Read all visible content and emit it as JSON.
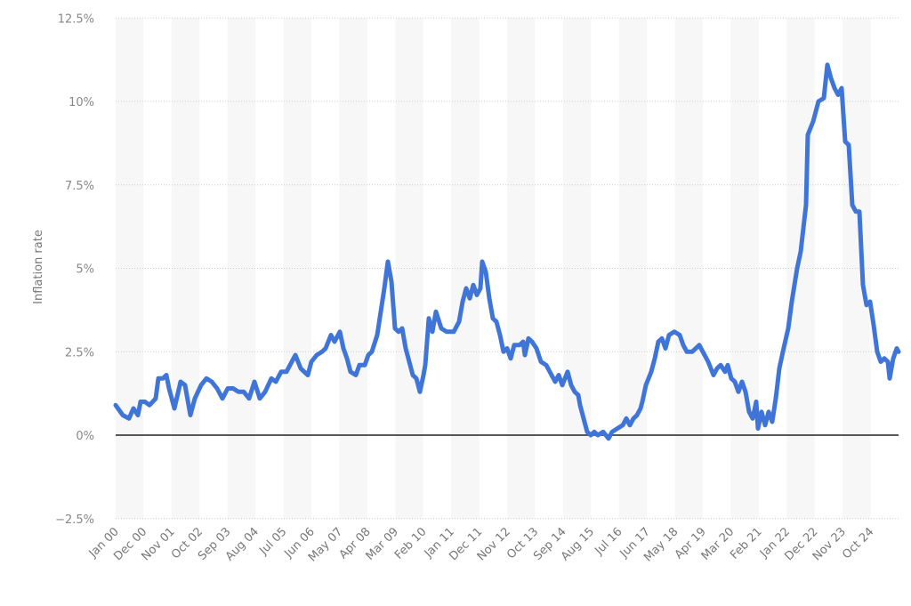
{
  "chart_data": {
    "type": "line",
    "title": "",
    "xlabel": "",
    "ylabel": "Inflation rate",
    "ylim": [
      -2.5,
      12.5
    ],
    "yticks": [
      "12.5%",
      "10%",
      "7.5%",
      "5%",
      "2.5%",
      "0%",
      "-2.5%"
    ],
    "ytick_values": [
      12.5,
      10,
      7.5,
      5,
      2.5,
      0,
      -2.5
    ],
    "xticks": [
      "Jan 00",
      "Dec 00",
      "Nov 01",
      "Oct 02",
      "Sep 03",
      "Aug 04",
      "Jul 05",
      "Jun 06",
      "May 07",
      "Apr 08",
      "Mar 09",
      "Feb 10",
      "Jan 11",
      "Dec 11",
      "Nov 12",
      "Oct 13",
      "Sep 14",
      "Aug 15",
      "Jul 16",
      "Jun 17",
      "May 18",
      "Apr 19",
      "Mar 20",
      "Feb 21",
      "Jan 22",
      "Dec 22",
      "Nov 23",
      "Oct 24"
    ],
    "grid": true,
    "legend": null,
    "line_color": "#3f75d9",
    "series": [
      {
        "name": "Inflation rate",
        "points": [
          [
            130,
            0.9
          ],
          [
            138,
            0.6
          ],
          [
            145,
            0.5
          ],
          [
            150,
            0.8
          ],
          [
            155,
            0.6
          ],
          [
            158,
            1.0
          ],
          [
            163,
            1.0
          ],
          [
            168,
            0.9
          ],
          [
            175,
            1.1
          ],
          [
            178,
            1.7
          ],
          [
            183,
            1.7
          ],
          [
            187,
            1.8
          ],
          [
            190,
            1.4
          ],
          [
            196,
            0.8
          ],
          [
            203,
            1.6
          ],
          [
            208,
            1.5
          ],
          [
            214,
            0.6
          ],
          [
            219,
            1.1
          ],
          [
            226,
            1.5
          ],
          [
            232,
            1.7
          ],
          [
            238,
            1.6
          ],
          [
            244,
            1.4
          ],
          [
            250,
            1.1
          ],
          [
            256,
            1.4
          ],
          [
            262,
            1.4
          ],
          [
            268,
            1.3
          ],
          [
            274,
            1.3
          ],
          [
            280,
            1.1
          ],
          [
            286,
            1.6
          ],
          [
            292,
            1.1
          ],
          [
            298,
            1.3
          ],
          [
            305,
            1.7
          ],
          [
            310,
            1.6
          ],
          [
            316,
            1.9
          ],
          [
            322,
            1.9
          ],
          [
            328,
            2.2
          ],
          [
            332,
            2.4
          ],
          [
            338,
            2.0
          ],
          [
            342,
            1.9
          ],
          [
            346,
            1.8
          ],
          [
            350,
            2.2
          ],
          [
            356,
            2.4
          ],
          [
            362,
            2.5
          ],
          [
            366,
            2.6
          ],
          [
            372,
            3.0
          ],
          [
            376,
            2.8
          ],
          [
            382,
            3.1
          ],
          [
            386,
            2.6
          ],
          [
            390,
            2.3
          ],
          [
            394,
            1.9
          ],
          [
            400,
            1.8
          ],
          [
            404,
            2.1
          ],
          [
            410,
            2.1
          ],
          [
            414,
            2.4
          ],
          [
            418,
            2.5
          ],
          [
            424,
            3.0
          ],
          [
            428,
            3.7
          ],
          [
            432,
            4.4
          ],
          [
            436,
            5.2
          ],
          [
            440,
            4.6
          ],
          [
            444,
            3.2
          ],
          [
            448,
            3.1
          ],
          [
            452,
            3.2
          ],
          [
            456,
            2.6
          ],
          [
            460,
            2.2
          ],
          [
            464,
            1.8
          ],
          [
            468,
            1.7
          ],
          [
            472,
            1.3
          ],
          [
            476,
            1.8
          ],
          [
            478,
            2.1
          ],
          [
            482,
            3.5
          ],
          [
            486,
            3.1
          ],
          [
            490,
            3.7
          ],
          [
            496,
            3.2
          ],
          [
            502,
            3.1
          ],
          [
            510,
            3.1
          ],
          [
            516,
            3.4
          ],
          [
            520,
            4.0
          ],
          [
            524,
            4.4
          ],
          [
            528,
            4.1
          ],
          [
            532,
            4.5
          ],
          [
            536,
            4.2
          ],
          [
            540,
            4.4
          ],
          [
            542,
            5.2
          ],
          [
            546,
            4.9
          ],
          [
            550,
            4.1
          ],
          [
            554,
            3.5
          ],
          [
            558,
            3.4
          ],
          [
            562,
            3.0
          ],
          [
            566,
            2.5
          ],
          [
            570,
            2.6
          ],
          [
            574,
            2.3
          ],
          [
            578,
            2.7
          ],
          [
            584,
            2.7
          ],
          [
            588,
            2.8
          ],
          [
            590,
            2.4
          ],
          [
            594,
            2.9
          ],
          [
            598,
            2.8
          ],
          [
            603,
            2.6
          ],
          [
            608,
            2.2
          ],
          [
            614,
            2.1
          ],
          [
            620,
            1.8
          ],
          [
            624,
            1.6
          ],
          [
            628,
            1.8
          ],
          [
            632,
            1.5
          ],
          [
            638,
            1.9
          ],
          [
            642,
            1.5
          ],
          [
            646,
            1.3
          ],
          [
            650,
            1.2
          ],
          [
            652,
            0.9
          ],
          [
            656,
            0.5
          ],
          [
            660,
            0.1
          ],
          [
            664,
            0.0
          ],
          [
            668,
            0.1
          ],
          [
            672,
            0.0
          ],
          [
            678,
            0.1
          ],
          [
            684,
            -0.1
          ],
          [
            688,
            0.1
          ],
          [
            694,
            0.2
          ],
          [
            700,
            0.3
          ],
          [
            704,
            0.5
          ],
          [
            708,
            0.3
          ],
          [
            712,
            0.5
          ],
          [
            716,
            0.6
          ],
          [
            720,
            0.8
          ],
          [
            722,
            1.0
          ],
          [
            726,
            1.5
          ],
          [
            732,
            1.9
          ],
          [
            736,
            2.3
          ],
          [
            740,
            2.8
          ],
          [
            744,
            2.9
          ],
          [
            748,
            2.6
          ],
          [
            752,
            3.0
          ],
          [
            758,
            3.1
          ],
          [
            764,
            3.0
          ],
          [
            768,
            2.7
          ],
          [
            772,
            2.5
          ],
          [
            778,
            2.5
          ],
          [
            786,
            2.7
          ],
          [
            790,
            2.5
          ],
          [
            796,
            2.2
          ],
          [
            802,
            1.8
          ],
          [
            806,
            2.0
          ],
          [
            810,
            2.1
          ],
          [
            815,
            1.9
          ],
          [
            818,
            2.1
          ],
          [
            822,
            1.7
          ],
          [
            826,
            1.6
          ],
          [
            830,
            1.3
          ],
          [
            834,
            1.6
          ],
          [
            838,
            1.3
          ],
          [
            842,
            0.7
          ],
          [
            846,
            0.5
          ],
          [
            850,
            1.0
          ],
          [
            852,
            0.2
          ],
          [
            856,
            0.7
          ],
          [
            860,
            0.3
          ],
          [
            864,
            0.7
          ],
          [
            868,
            0.4
          ],
          [
            872,
            1.1
          ],
          [
            876,
            2.0
          ],
          [
            880,
            2.5
          ],
          [
            886,
            3.2
          ],
          [
            890,
            4.0
          ],
          [
            896,
            5.0
          ],
          [
            900,
            5.5
          ],
          [
            906,
            6.9
          ],
          [
            908,
            9.0
          ],
          [
            914,
            9.4
          ],
          [
            920,
            10.0
          ],
          [
            926,
            10.1
          ],
          [
            930,
            11.1
          ],
          [
            934,
            10.7
          ],
          [
            938,
            10.4
          ],
          [
            942,
            10.2
          ],
          [
            946,
            10.4
          ],
          [
            950,
            8.8
          ],
          [
            954,
            8.7
          ],
          [
            958,
            6.9
          ],
          [
            962,
            6.7
          ],
          [
            966,
            6.7
          ],
          [
            970,
            4.5
          ],
          [
            974,
            3.9
          ],
          [
            978,
            4.0
          ],
          [
            982,
            3.3
          ],
          [
            986,
            2.5
          ],
          [
            990,
            2.2
          ],
          [
            994,
            2.3
          ],
          [
            998,
            2.2
          ],
          [
            1000,
            1.7
          ],
          [
            1004,
            2.3
          ],
          [
            1008,
            2.6
          ],
          [
            1010,
            2.5
          ]
        ]
      }
    ],
    "highlights": {
      "peak": {
        "label": "Dec 22 area",
        "value": 11.1
      },
      "trough": {
        "label": "Aug 15 area",
        "value": -0.1
      }
    }
  }
}
